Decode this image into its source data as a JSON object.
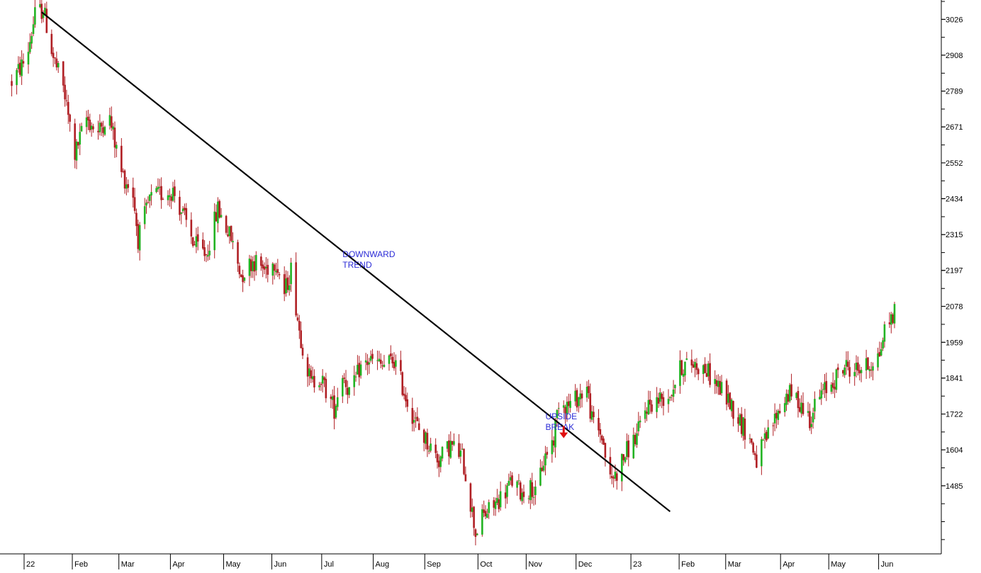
{
  "colors": {
    "up": "#23b323",
    "down": "#b01f24",
    "trendline": "#000000",
    "annotation": "#2b2bd6",
    "arrow": "#e01010",
    "axis": "#000000",
    "background": "#ffffff"
  },
  "chart_data": {
    "type": "candlestick",
    "title": "",
    "xlabel": "",
    "ylabel": "",
    "grid": false,
    "ylim": [
      1260,
      3090
    ],
    "x_range": [
      "2022-01-03",
      "2023-06-08"
    ],
    "y_ticks": [
      3026,
      2908,
      2789,
      2671,
      2552,
      2434,
      2315,
      2197,
      2078,
      1959,
      1841,
      1722,
      1604,
      1485
    ],
    "x_ticks": [
      {
        "label": "22",
        "date": "2022-01-03"
      },
      {
        "label": "Feb",
        "date": "2022-02-01"
      },
      {
        "label": "Mar",
        "date": "2022-03-01"
      },
      {
        "label": "Apr",
        "date": "2022-04-01"
      },
      {
        "label": "May",
        "date": "2022-05-03"
      },
      {
        "label": "Jun",
        "date": "2022-06-01"
      },
      {
        "label": "Jul",
        "date": "2022-07-01"
      },
      {
        "label": "Aug",
        "date": "2022-08-01"
      },
      {
        "label": "Sep",
        "date": "2022-09-01"
      },
      {
        "label": "Oct",
        "date": "2022-10-03"
      },
      {
        "label": "Nov",
        "date": "2022-11-01"
      },
      {
        "label": "Dec",
        "date": "2022-12-01"
      },
      {
        "label": "23",
        "date": "2023-01-03"
      },
      {
        "label": "Feb",
        "date": "2023-02-01"
      },
      {
        "label": "Mar",
        "date": "2023-03-01"
      },
      {
        "label": "Apr",
        "date": "2023-04-03"
      },
      {
        "label": "May",
        "date": "2023-05-02"
      },
      {
        "label": "Jun",
        "date": "2023-06-01"
      }
    ],
    "price_path": [
      [
        "2021-12-24",
        2820
      ],
      [
        "2022-01-02",
        2900
      ],
      [
        "2022-01-07",
        3040
      ],
      [
        "2022-01-12",
        3060
      ],
      [
        "2022-01-18",
        2900
      ],
      [
        "2022-01-24",
        2800
      ],
      [
        "2022-01-31",
        2580
      ],
      [
        "2022-02-07",
        2700
      ],
      [
        "2022-02-14",
        2650
      ],
      [
        "2022-02-20",
        2720
      ],
      [
        "2022-02-28",
        2520
      ],
      [
        "2022-03-07",
        2450
      ],
      [
        "2022-03-10",
        2300
      ],
      [
        "2022-03-17",
        2430
      ],
      [
        "2022-03-24",
        2450
      ],
      [
        "2022-03-31",
        2460
      ],
      [
        "2022-04-06",
        2380
      ],
      [
        "2022-04-13",
        2280
      ],
      [
        "2022-04-20",
        2250
      ],
      [
        "2022-04-27",
        2400
      ],
      [
        "2022-05-05",
        2300
      ],
      [
        "2022-05-11",
        2180
      ],
      [
        "2022-05-18",
        2230
      ],
      [
        "2022-05-25",
        2200
      ],
      [
        "2022-06-01",
        2230
      ],
      [
        "2022-06-06",
        2120
      ],
      [
        "2022-06-10",
        2200
      ],
      [
        "2022-06-15",
        2000
      ],
      [
        "2022-06-22",
        1820
      ],
      [
        "2022-06-27",
        1850
      ],
      [
        "2022-07-01",
        1800
      ],
      [
        "2022-07-06",
        1740
      ],
      [
        "2022-07-11",
        1860
      ],
      [
        "2022-07-16",
        1780
      ],
      [
        "2022-07-21",
        1870
      ],
      [
        "2022-07-27",
        1900
      ],
      [
        "2022-08-04",
        1880
      ],
      [
        "2022-08-11",
        1900
      ],
      [
        "2022-08-18",
        1780
      ],
      [
        "2022-08-25",
        1680
      ],
      [
        "2022-09-01",
        1620
      ],
      [
        "2022-09-07",
        1570
      ],
      [
        "2022-09-14",
        1620
      ],
      [
        "2022-09-21",
        1580
      ],
      [
        "2022-09-26",
        1430
      ],
      [
        "2022-09-29",
        1330
      ],
      [
        "2022-10-03",
        1380
      ],
      [
        "2022-10-10",
        1420
      ],
      [
        "2022-10-16",
        1460
      ],
      [
        "2022-10-21",
        1500
      ],
      [
        "2022-10-27",
        1460
      ],
      [
        "2022-11-02",
        1480
      ],
      [
        "2022-11-04",
        1450
      ],
      [
        "2022-11-08",
        1550
      ],
      [
        "2022-11-11",
        1600
      ],
      [
        "2022-11-15",
        1640
      ],
      [
        "2022-11-18",
        1770
      ],
      [
        "2022-11-24",
        1750
      ],
      [
        "2022-11-30",
        1780
      ],
      [
        "2022-12-05",
        1810
      ],
      [
        "2022-12-08",
        1700
      ],
      [
        "2022-12-14",
        1650
      ],
      [
        "2022-12-19",
        1500
      ],
      [
        "2022-12-23",
        1530
      ],
      [
        "2022-12-29",
        1600
      ],
      [
        "2023-01-04",
        1650
      ],
      [
        "2023-01-10",
        1750
      ],
      [
        "2023-01-17",
        1770
      ],
      [
        "2023-01-24",
        1790
      ],
      [
        "2023-01-31",
        1880
      ],
      [
        "2023-02-07",
        1890
      ],
      [
        "2023-02-14",
        1870
      ],
      [
        "2023-02-21",
        1820
      ],
      [
        "2023-02-28",
        1770
      ],
      [
        "2023-03-07",
        1700
      ],
      [
        "2023-03-13",
        1640
      ],
      [
        "2023-03-17",
        1570
      ],
      [
        "2023-03-23",
        1640
      ],
      [
        "2023-03-29",
        1720
      ],
      [
        "2023-04-05",
        1790
      ],
      [
        "2023-04-12",
        1760
      ],
      [
        "2023-04-18",
        1710
      ],
      [
        "2023-04-24",
        1780
      ],
      [
        "2023-05-02",
        1830
      ],
      [
        "2023-05-09",
        1880
      ],
      [
        "2023-05-16",
        1870
      ],
      [
        "2023-05-23",
        1880
      ],
      [
        "2023-05-30",
        1920
      ],
      [
        "2023-06-02",
        2000
      ],
      [
        "2023-06-08",
        2060
      ]
    ],
    "trendline": {
      "from": [
        "2022-01-11",
        3050
      ],
      "to": [
        "2023-01-24",
        1400
      ]
    },
    "annotations": [
      {
        "id": "downward-trend",
        "lines": [
          "DOWNWARD",
          "TREND"
        ],
        "date": "2022-07-11",
        "value": 2240
      },
      {
        "id": "upside-break",
        "lines": [
          "UPSIDE",
          "BREAK"
        ],
        "date": "2022-11-10",
        "value": 1705
      }
    ],
    "break_marker": {
      "date": "2022-11-21",
      "value": 1640
    }
  }
}
